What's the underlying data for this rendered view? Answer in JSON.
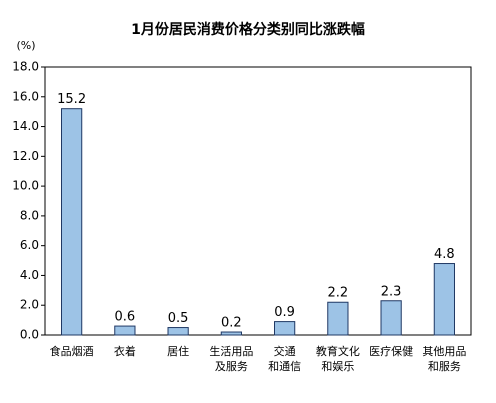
{
  "chart_data": {
    "type": "bar",
    "title": "1月份居民消费价格分类别同比涨跌幅",
    "y_unit": "(%)",
    "categories": [
      "食品烟酒",
      "衣着",
      "居住",
      "生活用品\n及服务",
      "交通\n和通信",
      "教育文化\n和娱乐",
      "医疗保健",
      "其他用品\n和服务"
    ],
    "values": [
      15.2,
      0.6,
      0.5,
      0.2,
      0.9,
      2.2,
      2.3,
      4.8
    ],
    "color": "#9dc3e6",
    "ylim": [
      0,
      18
    ],
    "yticks": [
      {
        "value": 0,
        "label": "0.0"
      },
      {
        "value": 2,
        "label": "2.0"
      },
      {
        "value": 4,
        "label": "4.0"
      },
      {
        "value": 6,
        "label": "6.0"
      },
      {
        "value": 8,
        "label": "8.0"
      },
      {
        "value": 10,
        "label": "10.0"
      },
      {
        "value": 12,
        "label": "12.0"
      },
      {
        "value": 14,
        "label": "14.0"
      },
      {
        "value": 16,
        "label": "16.0"
      },
      {
        "value": 18,
        "label": "18.0"
      }
    ],
    "grid": false
  }
}
